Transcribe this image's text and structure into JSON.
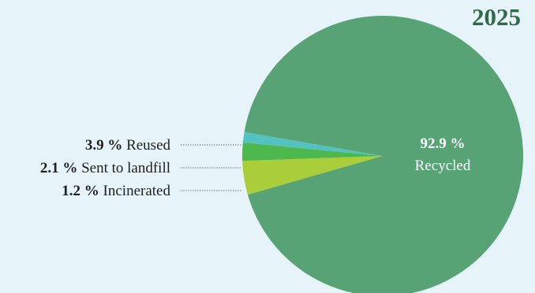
{
  "chart_data": {
    "type": "pie",
    "title": "2025",
    "slices": [
      {
        "label": "Recycled",
        "value": 92.9,
        "display": "92.9 %",
        "color": "#57a375"
      },
      {
        "label": "Reused",
        "value": 3.9,
        "display": "3.9 %",
        "color": "#aacd3a"
      },
      {
        "label": "Sent to landfill",
        "value": 2.1,
        "display": "2.1 %",
        "color": "#4db84e"
      },
      {
        "label": "Incinerated",
        "value": 1.2,
        "display": "1.2 %",
        "color": "#53c2c1"
      }
    ],
    "legend": "none",
    "title_color": "#2e6b47",
    "background": "#e6f4f9"
  }
}
